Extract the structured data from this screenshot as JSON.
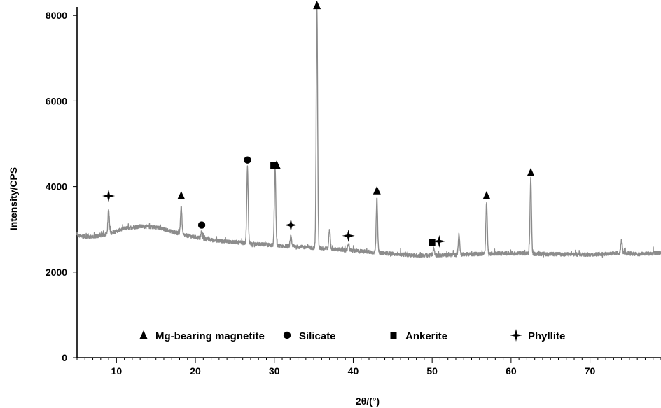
{
  "chart_data": {
    "type": "line",
    "xlabel": "2θ/(°)",
    "ylabel": "Intensity/CPS",
    "xlim": [
      5,
      79
    ],
    "ylim": [
      0,
      8200
    ],
    "xticks": [
      10,
      20,
      30,
      40,
      50,
      60,
      70
    ],
    "yticks": [
      0,
      2000,
      4000,
      6000,
      8000
    ],
    "xtick_labels": [
      "10",
      "20",
      "30",
      "40",
      "50",
      "60",
      "70"
    ],
    "ytick_labels": [
      "0",
      "2000",
      "4000",
      "6000",
      "8000"
    ],
    "grid": false,
    "line_color": "#8c8c8c",
    "background": [
      [
        5,
        2850
      ],
      [
        7,
        2820
      ],
      [
        9,
        2900
      ],
      [
        11,
        3020
      ],
      [
        13,
        3070
      ],
      [
        15,
        3050
      ],
      [
        17,
        2950
      ],
      [
        19,
        2850
      ],
      [
        22,
        2750
      ],
      [
        25,
        2700
      ],
      [
        28,
        2650
      ],
      [
        32,
        2600
      ],
      [
        36,
        2560
      ],
      [
        40,
        2500
      ],
      [
        45,
        2430
      ],
      [
        48,
        2390
      ],
      [
        52,
        2400
      ],
      [
        55,
        2420
      ],
      [
        60,
        2440
      ],
      [
        65,
        2420
      ],
      [
        70,
        2410
      ],
      [
        74,
        2450
      ],
      [
        76,
        2420
      ],
      [
        79,
        2450
      ]
    ],
    "peaks": [
      {
        "x": 9.0,
        "y": 3450
      },
      {
        "x": 18.2,
        "y": 3550
      },
      {
        "x": 20.8,
        "y": 2950
      },
      {
        "x": 26.6,
        "y": 4450
      },
      {
        "x": 30.1,
        "y": 4450
      },
      {
        "x": 32.1,
        "y": 2820
      },
      {
        "x": 35.4,
        "y": 8200
      },
      {
        "x": 37.0,
        "y": 3000
      },
      {
        "x": 39.4,
        "y": 2650
      },
      {
        "x": 43.0,
        "y": 3750
      },
      {
        "x": 50.2,
        "y": 2550
      },
      {
        "x": 53.4,
        "y": 2880
      },
      {
        "x": 56.9,
        "y": 3650
      },
      {
        "x": 62.5,
        "y": 4200
      },
      {
        "x": 74.0,
        "y": 2750
      }
    ],
    "markers": [
      {
        "x": 9.0,
        "y": 3780,
        "phase": "Phyllite"
      },
      {
        "x": 18.2,
        "y": 3780,
        "phase": "Mg-bearing magnetite"
      },
      {
        "x": 20.8,
        "y": 3100,
        "phase": "Silicate"
      },
      {
        "x": 26.6,
        "y": 4620,
        "phase": "Silicate"
      },
      {
        "x": 29.9,
        "y": 4500,
        "phase": "Ankerite"
      },
      {
        "x": 30.3,
        "y": 4500,
        "phase": "Mg-bearing magnetite"
      },
      {
        "x": 32.1,
        "y": 3100,
        "phase": "Phyllite"
      },
      {
        "x": 35.4,
        "y": 8230,
        "phase": "Mg-bearing magnetite"
      },
      {
        "x": 39.4,
        "y": 2850,
        "phase": "Phyllite"
      },
      {
        "x": 43.0,
        "y": 3900,
        "phase": "Mg-bearing magnetite"
      },
      {
        "x": 50.0,
        "y": 2700,
        "phase": "Ankerite"
      },
      {
        "x": 50.9,
        "y": 2720,
        "phase": "Phyllite"
      },
      {
        "x": 56.9,
        "y": 3780,
        "phase": "Mg-bearing magnetite"
      },
      {
        "x": 62.5,
        "y": 4320,
        "phase": "Mg-bearing magnetite"
      }
    ],
    "legend": {
      "placement": "bottom-center",
      "entries": [
        {
          "symbol": "triangle",
          "label": "Mg-bearing magnetite"
        },
        {
          "symbol": "circle",
          "label": "Silicate"
        },
        {
          "symbol": "square",
          "label": "Ankerite"
        },
        {
          "symbol": "star",
          "label": "Phyllite"
        }
      ]
    }
  }
}
